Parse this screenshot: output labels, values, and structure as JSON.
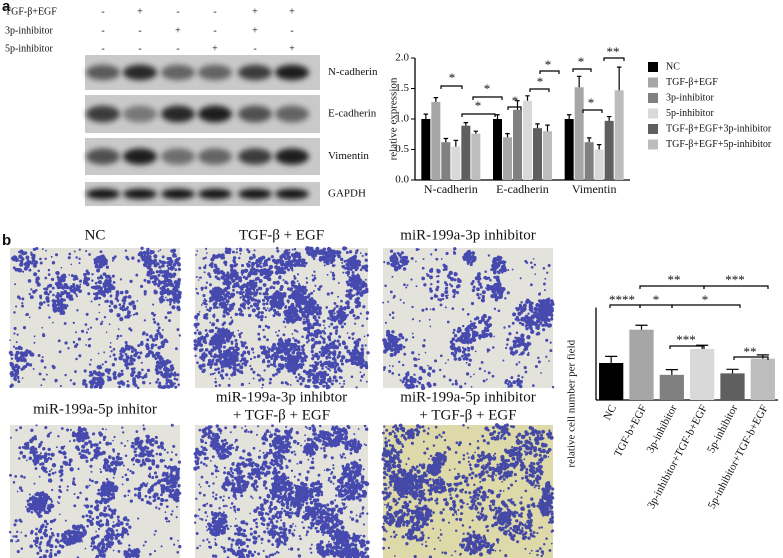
{
  "panel_labels": [
    "a",
    "b"
  ],
  "blot": {
    "conditions": [
      {
        "name": "TGF-β+EGF",
        "signs": [
          "-",
          "+",
          "-",
          "-",
          "+",
          "+"
        ]
      },
      {
        "name": "3p-inhibitor",
        "signs": [
          "-",
          "-",
          "+",
          "-",
          "+",
          "-"
        ]
      },
      {
        "name": "5p-inhibitor",
        "signs": [
          "-",
          "-",
          "-",
          "+",
          "-",
          "+"
        ]
      }
    ],
    "proteins": [
      "N-cadherin",
      "E-cadherin",
      "Vimentin",
      "GAPDH"
    ]
  },
  "images": [
    {
      "title": [
        "NC"
      ]
    },
    {
      "title": [
        "TGF-β + EGF"
      ]
    },
    {
      "title": [
        "miR-199a-3p inhibitor"
      ]
    },
    {
      "title": [
        "miR-199a-5p inhitor"
      ]
    },
    {
      "title": [
        "miR-199a-3p inhibtor",
        "+ TGF-β + EGF"
      ]
    },
    {
      "title": [
        "miR-199a-5p inhibitor",
        "+ TGF-β + EGF"
      ]
    }
  ],
  "chart_data": [
    {
      "type": "bar",
      "ylabel": "relative expression",
      "categories": [
        "N-cadherin",
        "E-cadherin",
        "Vimentin"
      ],
      "series": [
        {
          "name": "NC",
          "color": "#000000",
          "values": [
            1.0,
            1.0,
            1.0
          ],
          "errors": [
            0.08,
            0.07,
            0.07
          ]
        },
        {
          "name": "TGF-β+EGF",
          "color": "#a6a6a6",
          "values": [
            1.28,
            0.7,
            1.52
          ],
          "errors": [
            0.07,
            0.06,
            0.18
          ]
        },
        {
          "name": "3p-inhibitor",
          "color": "#808080",
          "values": [
            0.62,
            1.15,
            0.62
          ],
          "errors": [
            0.06,
            0.15,
            0.07
          ]
        },
        {
          "name": "5p-inhibitor",
          "color": "#d9d9d9",
          "values": [
            0.55,
            1.3,
            0.5
          ],
          "errors": [
            0.1,
            0.08,
            0.08
          ]
        },
        {
          "name": "TGF-β+EGF+3p-inhibitor",
          "color": "#5f5f5f",
          "values": [
            0.89,
            0.85,
            0.97
          ],
          "errors": [
            0.05,
            0.07,
            0.07
          ]
        },
        {
          "name": "TGF-β+EGF+5p-inhibitor",
          "color": "#bdbdbd",
          "values": [
            0.76,
            0.8,
            1.47
          ],
          "errors": [
            0.04,
            0.1,
            0.38
          ]
        }
      ],
      "ylim": [
        0,
        2.0
      ],
      "yticks": [
        {
          "value": 0,
          "label": "0.0"
        },
        0.5,
        {
          "value": 1,
          "label": "1.0"
        },
        1.5,
        {
          "value": 2,
          "label": "2.0"
        }
      ],
      "legend": "right",
      "annotations": [
        "*",
        "*",
        "*",
        "*",
        "*",
        "*",
        "*",
        "*",
        "**"
      ]
    },
    {
      "type": "bar",
      "ylabel": "relative cell number per field",
      "categories": [
        "NC",
        "TGF-b+EGF",
        "3p-inhibitor",
        "3p-inhibitor+TGF-b+EGF",
        "5p-inhibitor",
        "5p-inhibitor+TGF-b+EGF"
      ],
      "values": [
        1.0,
        1.9,
        0.68,
        1.38,
        0.72,
        1.12
      ],
      "errors": [
        0.18,
        0.12,
        0.14,
        0.1,
        0.11,
        0.1
      ],
      "colors": [
        "#000000",
        "#a6a6a6",
        "#808080",
        "#d9d9d9",
        "#5f5f5f",
        "#bdbdbd"
      ],
      "ylim": [
        0,
        2.5
      ],
      "annotations": [
        "**",
        "***",
        "****",
        "*",
        "*",
        "***",
        "**"
      ]
    }
  ]
}
